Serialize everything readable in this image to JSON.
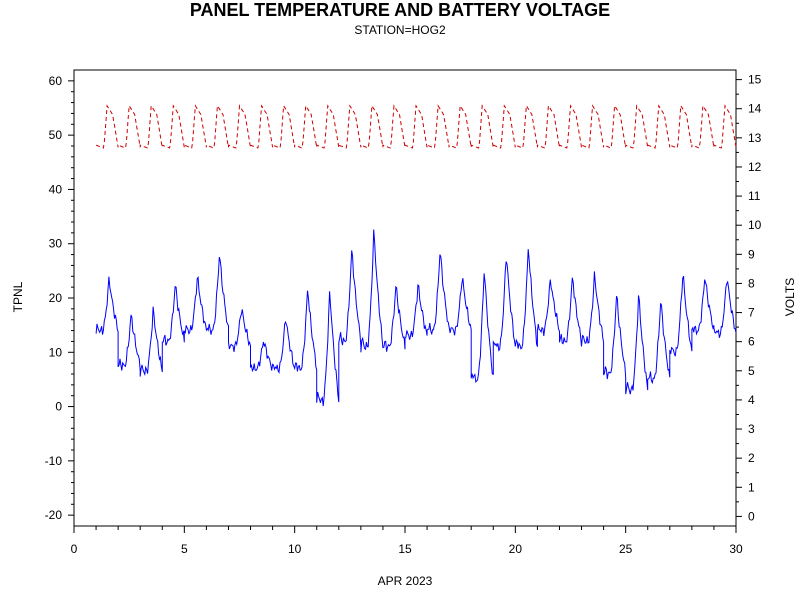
{
  "chart_data": {
    "type": "line",
    "title": "PANEL TEMPERATURE AND BATTERY VOLTAGE",
    "subtitle": "STATION=HOG2",
    "xlabel": "APR 2023",
    "ylabel_left": "TPNL",
    "ylabel_right": "VOLTS",
    "xlim": [
      0,
      30
    ],
    "xticks": [
      0,
      5,
      10,
      15,
      20,
      25,
      30
    ],
    "ylim_left": [
      -22,
      62
    ],
    "yticks_left": [
      -20,
      -10,
      0,
      10,
      20,
      30,
      40,
      50,
      60
    ],
    "ylim_right": [
      -0.33,
      15.33
    ],
    "yticks_right": [
      0,
      1,
      2,
      3,
      4,
      5,
      6,
      7,
      8,
      9,
      10,
      11,
      12,
      13,
      14,
      15
    ],
    "grid": false,
    "series": [
      {
        "name": "TPNL",
        "axis": "left",
        "color": "#0000ff",
        "style": "solid",
        "day_min": [
          14,
          7.5,
          6.5,
          12,
          14,
          14,
          11,
          7,
          7,
          7,
          1,
          12,
          11,
          11,
          13,
          14,
          14,
          5,
          11,
          11,
          14,
          12,
          12,
          6,
          3,
          5,
          10,
          14,
          13.5
        ],
        "day_max": [
          24,
          17.5,
          18.5,
          23,
          24.5,
          29,
          18.5,
          12.5,
          17,
          22.5,
          22.5,
          30,
          33.5,
          23,
          23,
          29.5,
          24.5,
          26.5,
          29,
          30.5,
          24,
          24.5,
          25,
          21.5,
          21.5,
          20.5,
          25.5,
          24.5,
          24.5
        ]
      },
      {
        "name": "VOLTS",
        "axis": "right",
        "color": "#cc0000",
        "style": "dashed",
        "day_min": 12.6,
        "day_max": 14.1
      }
    ]
  }
}
